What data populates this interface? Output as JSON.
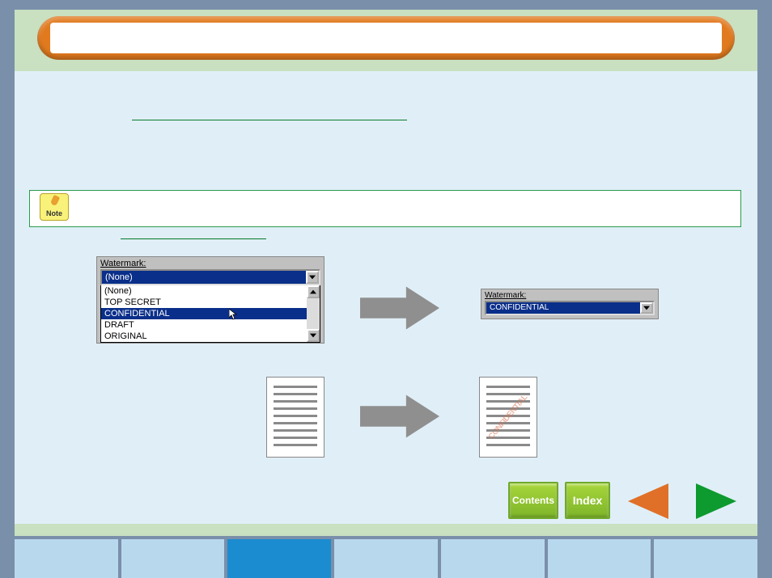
{
  "note_label": "Note",
  "dropdown_left": {
    "label": "Watermark:",
    "collapsed_value": "(None)",
    "options": [
      "(None)",
      "TOP SECRET",
      "CONFIDENTIAL",
      "DRAFT",
      "ORIGINAL"
    ],
    "selected_index": 2
  },
  "dropdown_right": {
    "label": "Watermark:",
    "value": "CONFIDENTIAL"
  },
  "doc_watermark": "CONFIDENTIAL",
  "nav": {
    "contents": "Contents",
    "index": "Index"
  },
  "colors": {
    "page_bg": "#7a8fa9",
    "panel_green": "#c9e0c1",
    "content_bg": "#e0eff7",
    "orange": "#e17a1f",
    "green_line": "#067a2c",
    "selection_blue": "#0a2f8a",
    "arrow_grey": "#8f8f8f",
    "btn_green_top": "#a8d63a",
    "btn_green_bot": "#7eb52a",
    "tri_orange": "#e07028",
    "tri_green": "#0d9a2f",
    "tab_bg": "#b8d8ee",
    "tab_active": "#1b8cd0"
  },
  "tabs_count": 7,
  "active_tab_index": 2
}
